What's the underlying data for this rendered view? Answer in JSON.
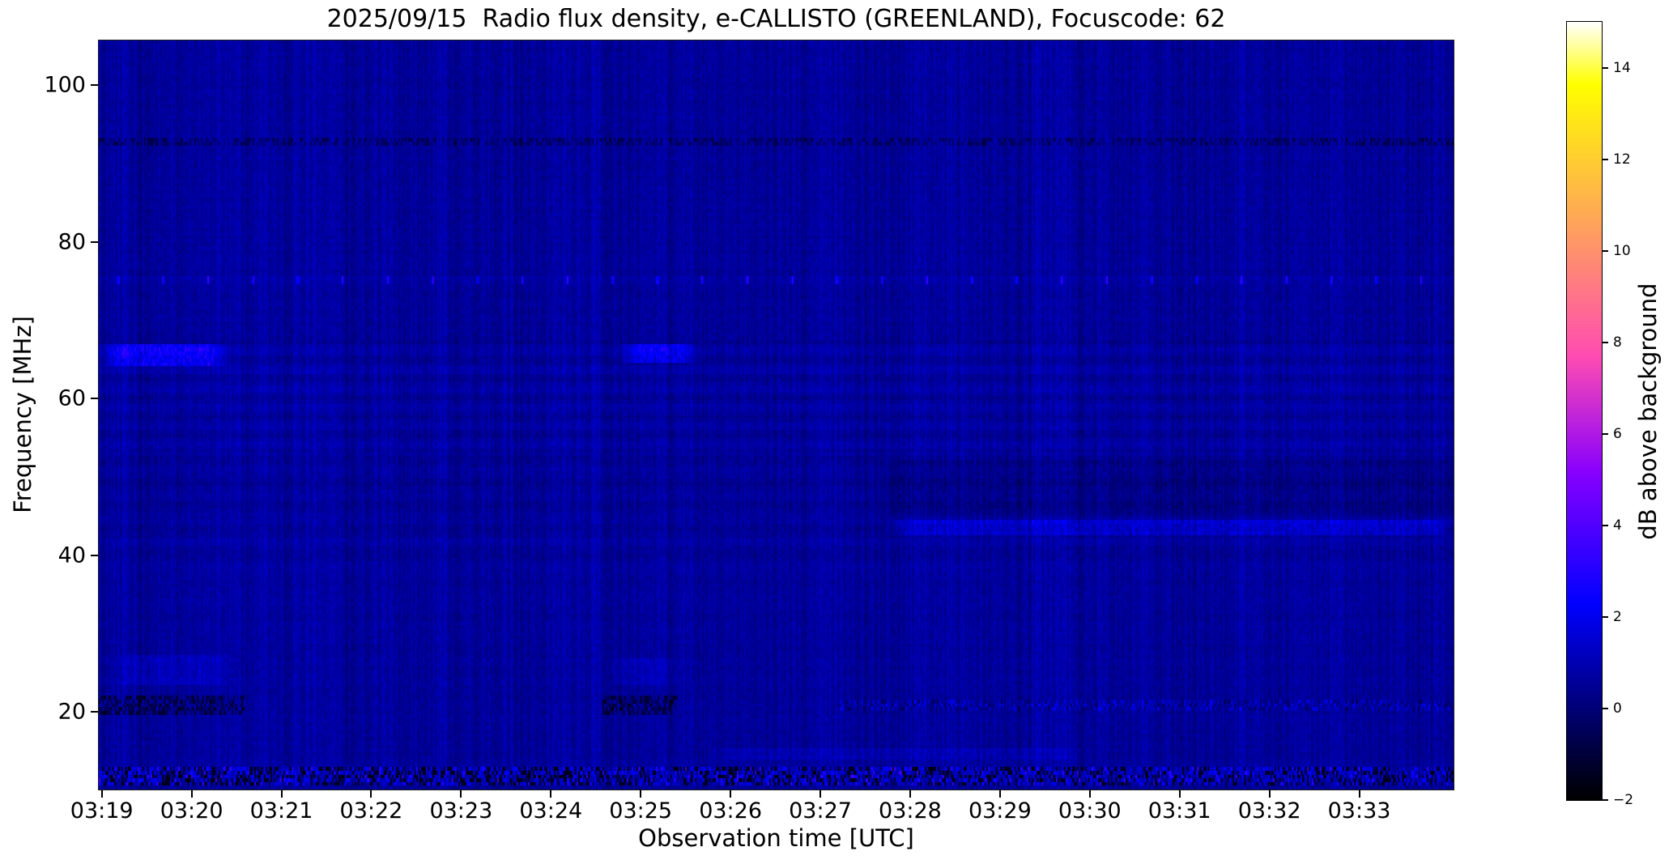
{
  "page": {
    "background": "#ffffff"
  },
  "chart_data": {
    "type": "heatmap",
    "title": "2025/09/15  Radio flux density, e-CALLISTO (GREENLAND), Focuscode: 62",
    "xlabel": "Observation time [UTC]",
    "ylabel": "Frequency [MHz]",
    "colorbar_label": "dB above background",
    "colormap": "gnuplot2",
    "x_tick_labels": [
      "03:19",
      "03:20",
      "03:21",
      "03:22",
      "03:23",
      "03:24",
      "03:25",
      "03:26",
      "03:27",
      "03:28",
      "03:29",
      "03:30",
      "03:31",
      "03:32",
      "03:33"
    ],
    "x_axis": {
      "span_seconds": 905,
      "first_tick_offset_seconds": 2,
      "tick_interval_seconds": 60
    },
    "y_tick_values": [
      100,
      80,
      60,
      40,
      20
    ],
    "ylim": [
      10.1,
      105.7
    ],
    "colorbar_tick_values": [
      14,
      12,
      10,
      8,
      6,
      4,
      2,
      0,
      -2
    ],
    "clim": [
      -2,
      15
    ],
    "background_level_db": 0.6,
    "grid": false,
    "legend": "colorbar-right",
    "features": [
      {
        "name": "broadband-rfi-band-11-13MHz",
        "effect": "rf-speckle",
        "f": [
          10.8,
          13.1
        ],
        "t": [
          0,
          1
        ]
      },
      {
        "name": "dark-speckle-line-92.7MHz",
        "effect": "speckle",
        "f": [
          92.2,
          93.4
        ],
        "t": [
          0,
          1
        ],
        "dv": -0.9,
        "density": 0.55
      },
      {
        "name": "periodic-cal-dots-75MHz",
        "effect": "dots",
        "f": [
          74.55,
          75.65
        ],
        "t": [
          0,
          1
        ],
        "dv": 2.6,
        "period_s": 30,
        "first_s": 13,
        "row_glow": 0.15
      },
      {
        "name": "striation-54-67MHz",
        "effect": "striation",
        "f": [
          53.5,
          67.5
        ],
        "t": [
          0,
          1
        ],
        "amp": 0.2,
        "period_mhz": 2.4
      },
      {
        "name": "striation-38-52MHz",
        "effect": "striation",
        "f": [
          38,
          52.5
        ],
        "t": [
          0,
          1
        ],
        "amp": 0.14,
        "period_mhz": 3.0
      },
      {
        "name": "bright-patch-65MHz-0319",
        "effect": "bright",
        "f": [
          64.2,
          66.8
        ],
        "t": [
          0,
          0.097
        ],
        "dv": 1.7
      },
      {
        "name": "bright-patch-65MHz-0325",
        "effect": "bright",
        "f": [
          64.6,
          66.8
        ],
        "t": [
          0.382,
          0.443
        ],
        "dv": 1.5
      },
      {
        "name": "bright-band-43MHz-after-0329",
        "effect": "bright",
        "f": [
          42.5,
          44.4
        ],
        "t": [
          0.582,
          1
        ],
        "dv": 0.9
      },
      {
        "name": "dark-mottle-45-52MHz-after-0329",
        "effect": "dark-mottle",
        "f": [
          44.8,
          52.2
        ],
        "t": [
          0.582,
          1
        ],
        "dv": -0.34
      },
      {
        "name": "dark-patch-20MHz-0319",
        "effect": "speckle",
        "f": [
          19.6,
          22.1
        ],
        "t": [
          0,
          0.107
        ],
        "dv": -1.3,
        "density": 0.6
      },
      {
        "name": "dark-patch-20MHz-0325",
        "effect": "speckle",
        "f": [
          19.6,
          22.1
        ],
        "t": [
          0.372,
          0.428
        ],
        "dv": -1.3,
        "density": 0.6
      },
      {
        "name": "bright-speckle-25MHz-0319",
        "effect": "bright",
        "f": [
          23.4,
          27.2
        ],
        "t": [
          0.008,
          0.1
        ],
        "dv": 0.5
      },
      {
        "name": "bright-speckle-25MHz-0325",
        "effect": "bright",
        "f": [
          23.4,
          26.6
        ],
        "t": [
          0.375,
          0.43
        ],
        "dv": 0.45
      },
      {
        "name": "speckle-row-20.5MHz-after-0328",
        "effect": "mixed-speckle",
        "f": [
          20.0,
          21.4
        ],
        "t": [
          0.545,
          1
        ],
        "dv": 0.9
      },
      {
        "name": "faint-bright-row-14MHz",
        "effect": "bright",
        "f": [
          13.7,
          15.2
        ],
        "t": [
          0.45,
          0.73
        ],
        "dv": 0.4
      }
    ]
  }
}
